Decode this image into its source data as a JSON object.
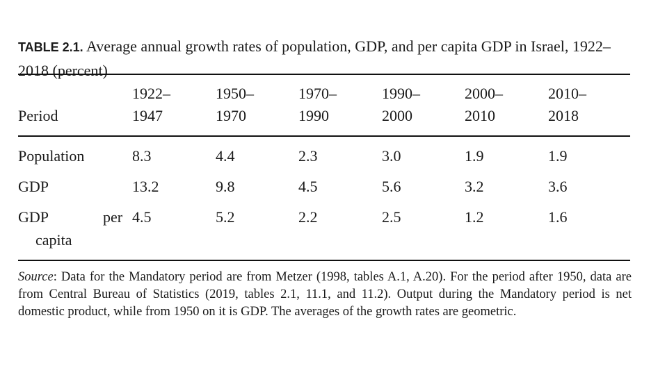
{
  "table": {
    "label": "TABLE 2.1.",
    "caption": "Average annual growth rates of population, GDP, and per capita GDP in Israel, 1922–2018 (percent)",
    "header": {
      "row_label": "Period",
      "columns": [
        {
          "start": "1922–",
          "end": "1947"
        },
        {
          "start": "1950–",
          "end": "1970"
        },
        {
          "start": "1970–",
          "end": "1990"
        },
        {
          "start": "1990–",
          "end": "2000"
        },
        {
          "start": "2000–",
          "end": "2010"
        },
        {
          "start": "2010–",
          "end": "2018"
        }
      ]
    },
    "rows": [
      {
        "label": "Population",
        "values": [
          "8.3",
          "4.4",
          "2.3",
          "3.0",
          "1.9",
          "1.9"
        ]
      },
      {
        "label": "GDP",
        "values": [
          "13.2",
          "9.8",
          "4.5",
          "5.6",
          "3.2",
          "3.6"
        ]
      },
      {
        "label_a": "GDP",
        "label_b": "per",
        "label_c": "capita",
        "values": [
          "4.5",
          "5.2",
          "2.2",
          "2.5",
          "1.2",
          "1.6"
        ]
      }
    ],
    "source_label": "Source",
    "source_text": ": Data for the Mandatory period are from Metzer (1998, tables A.1, A.20). For the period after 1950, data are from Central Bureau of Statistics (2019, tables 2.1, 11.1, and 11.2). Output during the Mandatory period is net domestic product, while from 1950 on it is GDP. The averages of the growth rates are geometric."
  }
}
